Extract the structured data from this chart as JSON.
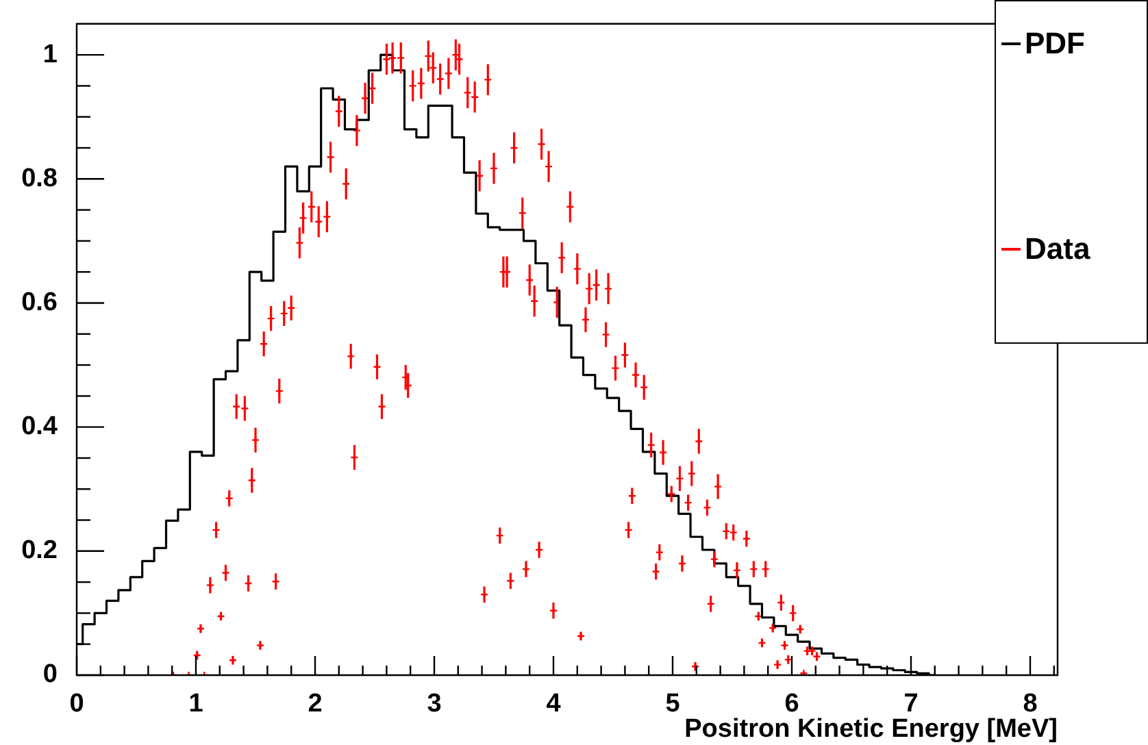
{
  "chart_data": {
    "type": "scatter",
    "xlabel": "Positron Kinetic Energy [MeV]",
    "legend": "top right",
    "xlim": [
      0,
      8.23
    ],
    "ylim": [
      0,
      1.05
    ],
    "xticks": [
      0,
      {
        "value": 0.2,
        "label": null
      },
      {
        "value": 0.4,
        "label": null
      },
      {
        "value": 0.6,
        "label": null
      },
      {
        "value": 0.8,
        "label": null
      },
      1,
      {
        "value": 1.2,
        "label": null
      },
      {
        "value": 1.4,
        "label": null
      },
      {
        "value": 1.6,
        "label": null
      },
      {
        "value": 1.8,
        "label": null
      },
      2,
      {
        "value": 2.2,
        "label": null
      },
      {
        "value": 2.4,
        "label": null
      },
      {
        "value": 2.6,
        "label": null
      },
      {
        "value": 2.8,
        "label": null
      },
      3,
      {
        "value": 3.2,
        "label": null
      },
      {
        "value": 3.4,
        "label": null
      },
      {
        "value": 3.6,
        "label": null
      },
      {
        "value": 3.8,
        "label": null
      },
      4,
      {
        "value": 4.2,
        "label": null
      },
      {
        "value": 4.4,
        "label": null
      },
      {
        "value": 4.6,
        "label": null
      },
      {
        "value": 4.8,
        "label": null
      },
      5,
      {
        "value": 5.2,
        "label": null
      },
      {
        "value": 5.4,
        "label": null
      },
      {
        "value": 5.6,
        "label": null
      },
      {
        "value": 5.8,
        "label": null
      },
      6,
      {
        "value": 6.2,
        "label": null
      },
      {
        "value": 6.4,
        "label": null
      },
      {
        "value": 6.6,
        "label": null
      },
      {
        "value": 6.8,
        "label": null
      },
      7,
      {
        "value": 7.2,
        "label": null
      },
      {
        "value": 7.4,
        "label": null
      },
      {
        "value": 7.6,
        "label": null
      },
      {
        "value": 7.8,
        "label": null
      },
      8,
      {
        "value": 8.2,
        "label": null
      }
    ],
    "yticks": [
      0,
      {
        "value": 0.05,
        "label": null
      },
      {
        "value": 0.1,
        "label": null
      },
      {
        "value": 0.15,
        "label": null
      },
      0.2,
      {
        "value": 0.25,
        "label": null
      },
      {
        "value": 0.3,
        "label": null
      },
      {
        "value": 0.35,
        "label": null
      },
      0.4,
      {
        "value": 0.45,
        "label": null
      },
      {
        "value": 0.5,
        "label": null
      },
      {
        "value": 0.55,
        "label": null
      },
      0.6,
      {
        "value": 0.65,
        "label": null
      },
      {
        "value": 0.7,
        "label": null
      },
      {
        "value": 0.75,
        "label": null
      },
      0.8,
      {
        "value": 0.85,
        "label": null
      },
      {
        "value": 0.9,
        "label": null
      },
      {
        "value": 0.95,
        "label": null
      },
      1
    ],
    "series": [
      {
        "name": "PDF",
        "type": "step",
        "color": "#000000",
        "marker": "none",
        "x": [
          0,
          0.1,
          0.2,
          0.3,
          0.4,
          0.5,
          0.6,
          0.7,
          0.8,
          0.9,
          1,
          1.1,
          1.2,
          1.3,
          1.4,
          1.5,
          1.6,
          1.7,
          1.8,
          1.9,
          2,
          2.1,
          2.2,
          2.3,
          2.4,
          2.5,
          2.6,
          2.7,
          2.8,
          2.9,
          3,
          3.1,
          3.2,
          3.3,
          3.4,
          3.5,
          3.6,
          3.7,
          3.8,
          3.9,
          4,
          4.1,
          4.2,
          4.3,
          4.4,
          4.5,
          4.6,
          4.7,
          4.8,
          4.9,
          5,
          5.1,
          5.2,
          5.3,
          5.4,
          5.5,
          5.6,
          5.7,
          5.8,
          5.9,
          6,
          6.1,
          6.2,
          6.3,
          6.4,
          6.5,
          6.6,
          6.7,
          6.8,
          6.9,
          7,
          7.1,
          7.2
        ],
        "values": [
          0.05,
          0.082,
          0.1,
          0.12,
          0.137,
          0.158,
          0.184,
          0.205,
          0.249,
          0.267,
          0.36,
          0.354,
          0.477,
          0.49,
          0.54,
          0.65,
          0.636,
          0.715,
          0.82,
          0.78,
          0.82,
          0.946,
          0.928,
          0.88,
          0.895,
          0.975,
          1.0,
          0.975,
          0.88,
          0.867,
          0.918,
          0.918,
          0.867,
          0.81,
          0.744,
          0.722,
          0.718,
          0.718,
          0.7,
          0.664,
          0.62,
          0.564,
          0.512,
          0.484,
          0.462,
          0.447,
          0.426,
          0.397,
          0.36,
          0.325,
          0.289,
          0.26,
          0.223,
          0.202,
          0.18,
          0.158,
          0.144,
          0.115,
          0.093,
          0.079,
          0.065,
          0.054,
          0.043,
          0.035,
          0.028,
          0.025,
          0.017,
          0.013,
          0.011,
          0.008,
          0.005,
          0.003,
          0
        ]
      },
      {
        "name": "Data",
        "type": "scatter",
        "color": "#ff0000",
        "marker": "cross",
        "x": [
          0.81,
          0.94,
          1.01,
          1.04,
          1.07,
          1.12,
          1.17,
          1.21,
          1.25,
          1.28,
          1.31,
          1.34,
          1.41,
          1.44,
          1.47,
          1.5,
          1.54,
          1.57,
          1.63,
          1.67,
          1.7,
          1.74,
          1.8,
          1.87,
          1.9,
          1.97,
          2.03,
          2.1,
          2.13,
          2.2,
          2.26,
          2.3,
          2.33,
          2.35,
          2.42,
          2.48,
          2.52,
          2.56,
          2.6,
          2.65,
          2.72,
          2.76,
          2.78,
          2.82,
          2.89,
          2.95,
          2.99,
          3.05,
          3.12,
          3.18,
          3.21,
          3.28,
          3.34,
          3.38,
          3.42,
          3.45,
          3.5,
          3.55,
          3.58,
          3.61,
          3.64,
          3.67,
          3.74,
          3.77,
          3.8,
          3.84,
          3.88,
          3.9,
          3.96,
          4,
          4.03,
          4.07,
          4.14,
          4.2,
          4.23,
          4.27,
          4.3,
          4.36,
          4.44,
          4.46,
          4.52,
          4.6,
          4.63,
          4.66,
          4.69,
          4.76,
          4.82,
          4.86,
          4.89,
          4.92,
          4.99,
          5.06,
          5.08,
          5.13,
          5.16,
          5.19,
          5.22,
          5.29,
          5.32,
          5.35,
          5.38,
          5.45,
          5.51,
          5.54,
          5.62,
          5.68,
          5.72,
          5.75,
          5.78,
          5.84,
          5.88,
          5.91,
          5.94,
          5.97,
          6.01,
          6.07,
          6.1,
          6.13,
          6.17,
          6.21
        ],
        "values": [
          0,
          0,
          0.032,
          0.075,
          0,
          0.145,
          0.234,
          0.095,
          0.165,
          0.285,
          0.024,
          0.433,
          0.43,
          0.148,
          0.314,
          0.379,
          0.048,
          0.534,
          0.575,
          0.151,
          0.458,
          0.583,
          0.592,
          0.697,
          0.737,
          0.755,
          0.731,
          0.739,
          0.835,
          0.909,
          0.792,
          0.514,
          0.351,
          0.878,
          0.93,
          0.946,
          0.497,
          0.433,
          0.993,
          0.995,
          0.995,
          0.48,
          0.467,
          0.95,
          0.954,
          0.998,
          0.979,
          0.961,
          0.97,
          1.0,
          0.993,
          0.939,
          0.932,
          0.805,
          0.13,
          0.96,
          0.817,
          0.225,
          0.65,
          0.65,
          0.152,
          0.85,
          0.745,
          0.171,
          0.637,
          0.603,
          0.202,
          0.856,
          0.82,
          0.104,
          0.601,
          0.673,
          0.755,
          0.655,
          0.063,
          0.573,
          0.623,
          0.629,
          0.549,
          0.623,
          0.495,
          0.516,
          0.234,
          0.289,
          0.484,
          0.464,
          0.371,
          0.167,
          0.198,
          0.359,
          0.292,
          0.317,
          0.18,
          0.278,
          0.325,
          0.014,
          0.377,
          0.27,
          0.115,
          0.187,
          0.304,
          0.232,
          0.23,
          0.169,
          0.22,
          0.171,
          0.095,
          0.052,
          0.171,
          0.076,
          0.017,
          0.117,
          0.048,
          0.025,
          0.1,
          0.074,
          0.003,
          0.039,
          0.039,
          0.03
        ],
        "errors": [
          null,
          null,
          0.007,
          0.007,
          null,
          0.013,
          0.013,
          0.007,
          0.013,
          0.013,
          0.007,
          0.02,
          0.02,
          0.013,
          0.02,
          0.02,
          0.007,
          0.02,
          0.02,
          0.013,
          0.02,
          0.02,
          0.02,
          0.025,
          0.025,
          0.025,
          0.025,
          0.025,
          0.025,
          0.025,
          0.025,
          0.02,
          0.02,
          0.025,
          0.025,
          0.025,
          0.02,
          0.02,
          0.025,
          0.025,
          0.025,
          0.02,
          0.02,
          0.025,
          0.025,
          0.025,
          0.025,
          0.025,
          0.025,
          0.025,
          0.025,
          0.025,
          0.025,
          0.025,
          0.013,
          0.025,
          0.025,
          0.013,
          0.025,
          0.025,
          0.013,
          0.025,
          0.025,
          0.013,
          0.025,
          0.025,
          0.013,
          0.025,
          0.025,
          0.013,
          0.025,
          0.025,
          0.025,
          0.025,
          0.007,
          0.02,
          0.025,
          0.025,
          0.02,
          0.025,
          0.02,
          0.02,
          0.013,
          0.013,
          0.02,
          0.02,
          0.02,
          0.013,
          0.013,
          0.02,
          0.013,
          0.02,
          0.013,
          0.013,
          0.02,
          0.007,
          0.02,
          0.013,
          0.013,
          0.013,
          0.02,
          0.013,
          0.013,
          0.013,
          0.013,
          0.013,
          0.007,
          0.007,
          0.013,
          0.007,
          0.007,
          0.013,
          0.007,
          0.007,
          0.013,
          0.007,
          null,
          0.007,
          0.007,
          0.007
        ]
      }
    ]
  }
}
